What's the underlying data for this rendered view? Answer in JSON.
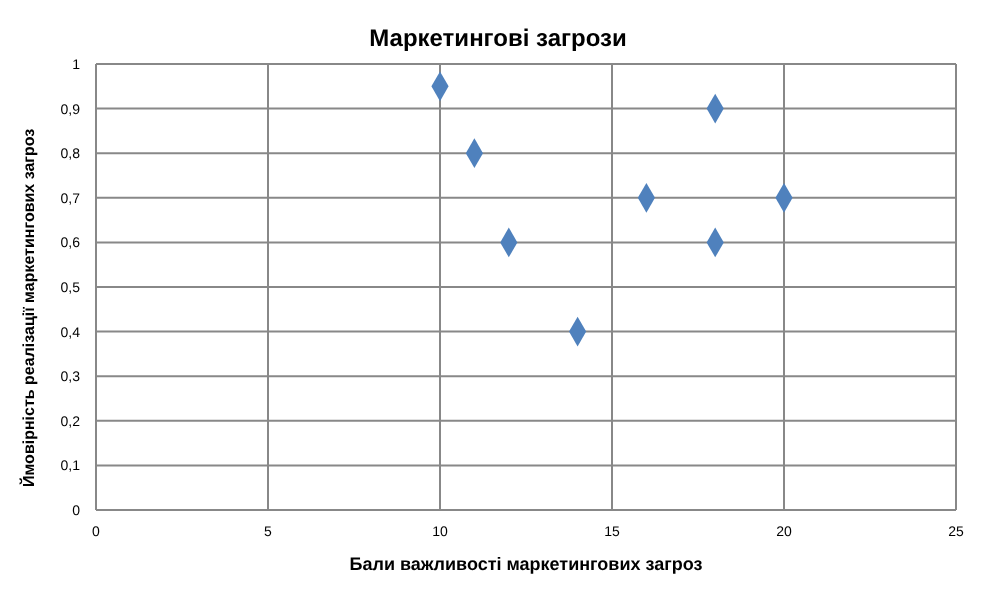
{
  "chart_data": {
    "type": "scatter",
    "title": "Маркетингові загрози",
    "xlabel": "Бали важливості маркетингових загроз",
    "ylabel": "Ймовірність реалізації маркетингових загроз",
    "x": [
      10,
      11,
      12,
      14,
      16,
      18,
      18,
      20
    ],
    "series": [
      {
        "color": "#4f81bd",
        "values": [
          0.95,
          0.8,
          0.6,
          0.4,
          0.7,
          0.9,
          0.6,
          0.7
        ]
      }
    ],
    "xlim": [
      0,
      25
    ],
    "xticks": [
      0,
      5,
      10,
      15,
      20,
      25
    ],
    "ylim": [
      0,
      1
    ],
    "yticks": [
      0,
      {
        "value": 0.1,
        "label": "0,1"
      },
      {
        "value": 0.2,
        "label": "0,2"
      },
      {
        "value": 0.3,
        "label": "0,3"
      },
      {
        "value": 0.4,
        "label": "0,4"
      },
      {
        "value": 0.5,
        "label": "0,5"
      },
      {
        "value": 0.6,
        "label": "0,6"
      },
      {
        "value": 0.7,
        "label": "0,7"
      },
      {
        "value": 0.8,
        "label": "0,8"
      },
      {
        "value": 0.9,
        "label": "0,9"
      },
      1
    ],
    "grid": true,
    "marker": "diamond"
  }
}
